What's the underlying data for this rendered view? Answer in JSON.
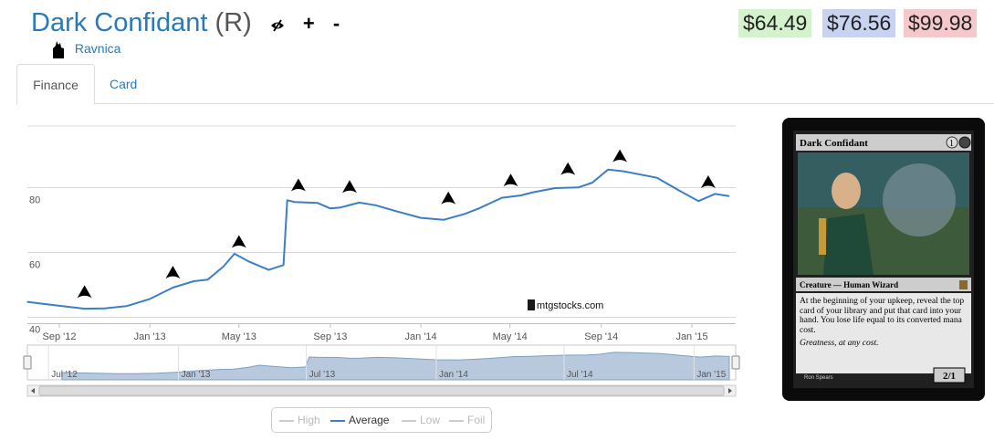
{
  "header": {
    "card_name": "Dark Confidant",
    "rarity": "(R)",
    "set_name": "Ravnica",
    "plus_label": "+",
    "minus_label": "-"
  },
  "prices": {
    "low": "$64.49",
    "average": "$76.56",
    "high": "$99.98",
    "low_color": "#d4f2cc",
    "average_color": "#c7d3f0",
    "high_color": "#f5c9cb"
  },
  "tabs": [
    {
      "label": "Finance",
      "active": true
    },
    {
      "label": "Card",
      "active": false
    }
  ],
  "chart_data": {
    "type": "line",
    "title": "",
    "xlabel": "",
    "ylabel": "",
    "xlim": [
      "2012-07-20",
      "2015-03-01"
    ],
    "ylim": [
      38,
      99
    ],
    "grid": true,
    "yticks": [
      40,
      60,
      80
    ],
    "xticks": [
      "Sep '12",
      "Jan '13",
      "May '13",
      "Sep '13",
      "Jan '14",
      "May '14",
      "Sep '14",
      "Jan '15"
    ],
    "xtick_dates": [
      "2012-09-01",
      "2013-01-01",
      "2013-05-01",
      "2013-09-01",
      "2014-01-01",
      "2014-05-01",
      "2014-09-01",
      "2015-01-01"
    ],
    "watermark": "mtgstocks.com",
    "series": [
      {
        "name": "Average",
        "color": "#3b7fc4",
        "points": [
          [
            "2012-07-20",
            44.6
          ],
          [
            "2012-08-10",
            44.0
          ],
          [
            "2012-09-05",
            43.3
          ],
          [
            "2012-10-05",
            42.5
          ],
          [
            "2012-11-01",
            42.6
          ],
          [
            "2012-12-01",
            43.3
          ],
          [
            "2013-01-01",
            45.5
          ],
          [
            "2013-02-01",
            49.0
          ],
          [
            "2013-03-01",
            51.0
          ],
          [
            "2013-03-20",
            51.5
          ],
          [
            "2013-04-10",
            55.5
          ],
          [
            "2013-04-25",
            59.5
          ],
          [
            "2013-05-15",
            57.0
          ],
          [
            "2013-06-10",
            54.5
          ],
          [
            "2013-06-30",
            56.0
          ],
          [
            "2013-07-05",
            76.0
          ],
          [
            "2013-07-15",
            75.5
          ],
          [
            "2013-08-15",
            75.2
          ],
          [
            "2013-09-01",
            73.5
          ],
          [
            "2013-09-15",
            73.8
          ],
          [
            "2013-10-10",
            75.3
          ],
          [
            "2013-11-01",
            74.5
          ],
          [
            "2013-12-01",
            72.5
          ],
          [
            "2014-01-01",
            70.6
          ],
          [
            "2014-02-01",
            70.0
          ],
          [
            "2014-03-01",
            71.8
          ],
          [
            "2014-03-20",
            73.5
          ],
          [
            "2014-04-20",
            76.8
          ],
          [
            "2014-05-15",
            77.5
          ],
          [
            "2014-06-01",
            78.5
          ],
          [
            "2014-07-01",
            79.8
          ],
          [
            "2014-08-01",
            80.0
          ],
          [
            "2014-08-20",
            81.5
          ],
          [
            "2014-09-10",
            85.5
          ],
          [
            "2014-10-01",
            85.0
          ],
          [
            "2014-11-15",
            83.0
          ],
          [
            "2014-12-15",
            79.0
          ],
          [
            "2015-01-10",
            75.8
          ],
          [
            "2015-02-01",
            78.0
          ],
          [
            "2015-02-20",
            77.3
          ]
        ]
      }
    ],
    "set_release_icons": [
      {
        "date": "2012-10-05",
        "value": 47.5,
        "icon": "return-to-ravnica-icon"
      },
      {
        "date": "2013-02-01",
        "value": 53.5,
        "icon": "gatecrash-icon"
      },
      {
        "date": "2013-05-01",
        "value": 63.0,
        "icon": "dragons-maze-icon"
      },
      {
        "date": "2013-07-20",
        "value": 80.5,
        "icon": "magic-2014-icon"
      },
      {
        "date": "2013-09-27",
        "value": 80.0,
        "icon": "theros-icon"
      },
      {
        "date": "2014-02-07",
        "value": 76.5,
        "icon": "born-of-the-gods-icon"
      },
      {
        "date": "2014-05-02",
        "value": 82.0,
        "icon": "journey-into-nyx-icon"
      },
      {
        "date": "2014-07-18",
        "value": 85.5,
        "icon": "magic-2015-icon"
      },
      {
        "date": "2014-09-26",
        "value": 89.5,
        "icon": "khans-of-tarkir-icon"
      },
      {
        "date": "2015-01-23",
        "value": 81.5,
        "icon": "fate-reforged-icon"
      }
    ]
  },
  "navigator": {
    "labels": [
      "Jul '12",
      "Jan '13",
      "Jul '13",
      "Jan '14",
      "Jul '14",
      "Jan '15"
    ],
    "label_dates": [
      "2012-07-01",
      "2013-01-01",
      "2013-07-01",
      "2014-01-01",
      "2014-07-01",
      "2015-01-01"
    ],
    "start": "2012-06-01",
    "end": "2015-03-01"
  },
  "legend": {
    "items": [
      {
        "label": "High",
        "color": "#cccccc",
        "active": false
      },
      {
        "label": "Average",
        "color": "#3b7fc4",
        "active": true
      },
      {
        "label": "Low",
        "color": "#cccccc",
        "active": false
      },
      {
        "label": "Foil",
        "color": "#cccccc",
        "active": false
      }
    ]
  },
  "card_image": {
    "name": "Dark Confidant",
    "mana_cost": "1",
    "type_line": "Creature — Human Wizard",
    "rules_text": "At the beginning of your upkeep, reveal the top card of your library and put that card into your hand. You lose life equal to its converted mana cost.",
    "flavor_text": "Greatness, at any cost.",
    "artist": "Ron Spears",
    "power_toughness": "2/1"
  }
}
